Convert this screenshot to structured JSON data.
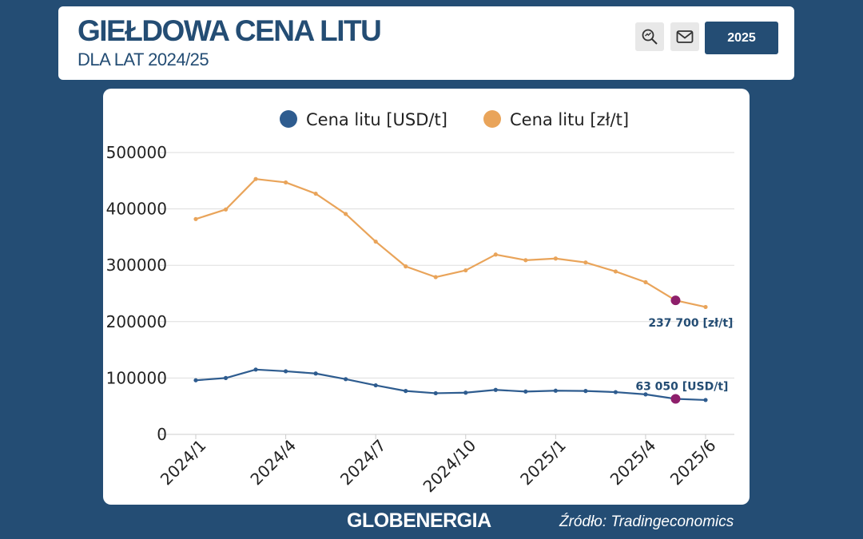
{
  "header": {
    "title": "GIEŁDOWA CENA LITU",
    "subtitle": "DLA LAT 2024/25",
    "year_button": "2025",
    "icons": [
      "zoom-icon",
      "mail-icon"
    ]
  },
  "colors": {
    "background": "#244d74",
    "usd_series": "#2e5c8f",
    "pln_series": "#e9a45a",
    "highlight": "#8e1f6b",
    "grid": "#dddddd"
  },
  "chart_data": {
    "type": "line",
    "x": [
      "2024/1",
      "2024/2",
      "2024/3",
      "2024/4",
      "2024/5",
      "2024/6",
      "2024/7",
      "2024/8",
      "2024/9",
      "2024/10",
      "2024/11",
      "2024/12",
      "2025/1",
      "2025/2",
      "2025/3",
      "2025/4",
      "2025/5",
      "2025/6"
    ],
    "x_tick_labels": [
      "2024/1",
      "2024/4",
      "2024/7",
      "2024/10",
      "2025/1",
      "2025/4",
      "2025/6"
    ],
    "y_ticks": [
      0,
      100000,
      200000,
      300000,
      400000,
      500000
    ],
    "ylim": [
      0,
      500000
    ],
    "grid": true,
    "legend_position": "top",
    "series": [
      {
        "name": "Cena litu [USD/t]",
        "color": "#2e5c8f",
        "values": [
          96000,
          100000,
          115000,
          112000,
          108000,
          98000,
          87000,
          77000,
          73000,
          74000,
          79000,
          76000,
          77500,
          77000,
          75000,
          71000,
          63050,
          61000
        ]
      },
      {
        "name": "Cena litu [zł/t]",
        "color": "#e9a45a",
        "values": [
          382000,
          399000,
          453000,
          447000,
          427000,
          391000,
          342000,
          298000,
          279000,
          291000,
          319000,
          309000,
          312000,
          305000,
          289000,
          270000,
          237700,
          226000
        ]
      }
    ],
    "highlighted_index": 16,
    "annotations": [
      {
        "series": 1,
        "index": 16,
        "text": "237 700 [zł/t]"
      },
      {
        "series": 0,
        "index": 16,
        "text": "63 050 [USD/t]"
      }
    ]
  },
  "footer": {
    "brand": "GLOBENERGIA",
    "source": "Źródło: Tradingeconomics"
  }
}
